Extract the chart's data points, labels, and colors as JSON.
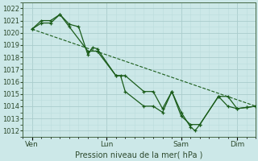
{
  "xlabel": "Pression niveau de la mer( hPa )",
  "bg_color": "#cce8e8",
  "grid_major_color": "#aacccc",
  "grid_minor_color": "#bbdddd",
  "line_color": "#1a5c1a",
  "ylim": [
    1011.5,
    1022.5
  ],
  "yticks": [
    1012,
    1013,
    1014,
    1015,
    1016,
    1017,
    1018,
    1019,
    1020,
    1021,
    1022
  ],
  "xtick_labels": [
    "Ven",
    "Lun",
    "Sam",
    "Dim"
  ],
  "xtick_positions": [
    0,
    48,
    96,
    132
  ],
  "xmin": -5,
  "xmax": 144,
  "series1_x": [
    0,
    6,
    12,
    18,
    24,
    30,
    36,
    39,
    42,
    54,
    57,
    60,
    72,
    78,
    84,
    90,
    96,
    102,
    105,
    108,
    120,
    126,
    132,
    138,
    144
  ],
  "series1_y": [
    1020.3,
    1020.8,
    1020.8,
    1021.5,
    1020.7,
    1020.5,
    1018.2,
    1018.8,
    1018.7,
    1016.5,
    1016.5,
    1015.2,
    1014.0,
    1014.0,
    1013.5,
    1015.2,
    1013.5,
    1012.3,
    1012.0,
    1012.5,
    1014.8,
    1014.0,
    1013.8,
    1013.9,
    1014.0
  ],
  "series2_x": [
    0,
    6,
    12,
    18,
    24,
    36,
    42,
    54,
    60,
    72,
    78,
    84,
    90,
    96,
    102,
    108,
    120,
    126,
    132,
    138,
    144
  ],
  "series2_y": [
    1020.3,
    1021.0,
    1021.0,
    1021.5,
    1020.5,
    1018.5,
    1018.5,
    1016.5,
    1016.5,
    1015.2,
    1015.2,
    1013.8,
    1015.2,
    1013.2,
    1012.5,
    1012.5,
    1014.8,
    1014.8,
    1013.8,
    1013.9,
    1014.0
  ],
  "trend_x": [
    0,
    144
  ],
  "trend_y": [
    1020.3,
    1014.0
  ]
}
